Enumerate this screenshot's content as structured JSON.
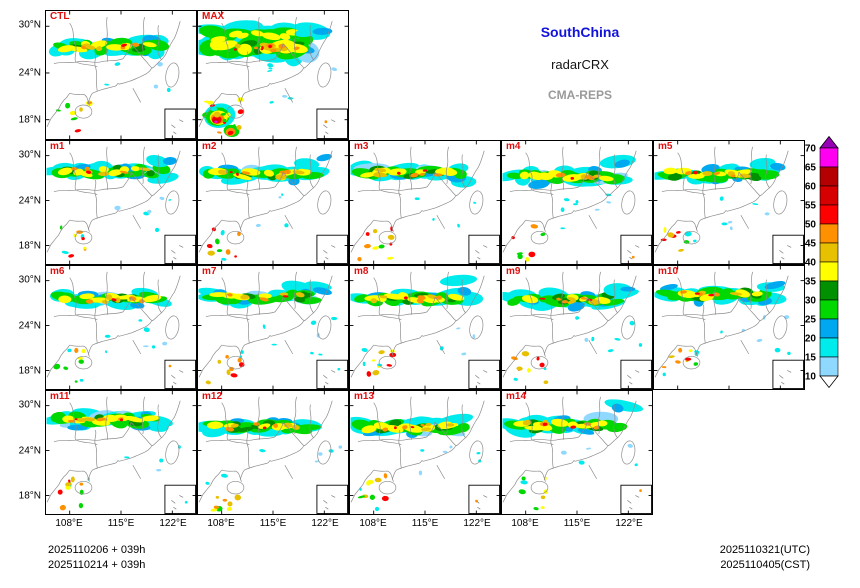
{
  "header": {
    "region": "SouthChina",
    "variable": "radarCRX",
    "model": "CMA-REPS"
  },
  "panels": {
    "rows": [
      [
        "CTL",
        "MAX"
      ],
      [
        "m1",
        "m2",
        "m3",
        "m4",
        "m5"
      ],
      [
        "m6",
        "m7",
        "m8",
        "m9",
        "m10"
      ],
      [
        "m11",
        "m12",
        "m13",
        "m14"
      ]
    ]
  },
  "axes": {
    "lat_ticks": [
      "30°N",
      "24°N",
      "18°N"
    ],
    "lon_ticks": [
      "108°E",
      "115°E",
      "122°E"
    ]
  },
  "colorbar": {
    "values_top_to_bottom": [
      "70",
      "65",
      "60",
      "55",
      "50",
      "45",
      "40",
      "35",
      "30",
      "25",
      "20",
      "15",
      "10"
    ],
    "segment_colors_top_to_bottom": [
      "#ff00f0",
      "#b40000",
      "#d60000",
      "#ff0000",
      "#ff9000",
      "#e7c000",
      "#ffff00",
      "#019000",
      "#00d800",
      "#00a8f0",
      "#00ecec",
      "#8fd8ff"
    ],
    "above_max_color": "#9600b4",
    "below_min_color": "#ffffff"
  },
  "footer": {
    "init_line1": "2025110206 + 039h",
    "init_line2": "2025110214 + 039h",
    "valid_utc": "2025110321(UTC)",
    "valid_cst": "2025110405(CST)"
  },
  "colors": {
    "panel_label": "#e01010",
    "region_title": "#1212dd",
    "model_title": "#9a9a9a"
  },
  "chart_data": {
    "type": "heatmap",
    "title": "SouthChina radarCRX CMA-REPS ensemble composite reflectivity maps",
    "panels": [
      "CTL",
      "MAX",
      "m1",
      "m2",
      "m3",
      "m4",
      "m5",
      "m6",
      "m7",
      "m8",
      "m9",
      "m10",
      "m11",
      "m12",
      "m13",
      "m14"
    ],
    "x_ticks": [
      "108°E",
      "115°E",
      "122°E"
    ],
    "y_ticks": [
      "30°N",
      "24°N",
      "18°N"
    ],
    "colorbar_values_dbz": [
      10,
      15,
      20,
      25,
      30,
      35,
      40,
      45,
      50,
      55,
      60,
      65,
      70
    ],
    "init_times": [
      "2025110206 + 039h",
      "2025110214 + 039h"
    ],
    "valid_times": [
      "2025110321(UTC)",
      "2025110405(CST)"
    ],
    "legend_position": "right"
  }
}
